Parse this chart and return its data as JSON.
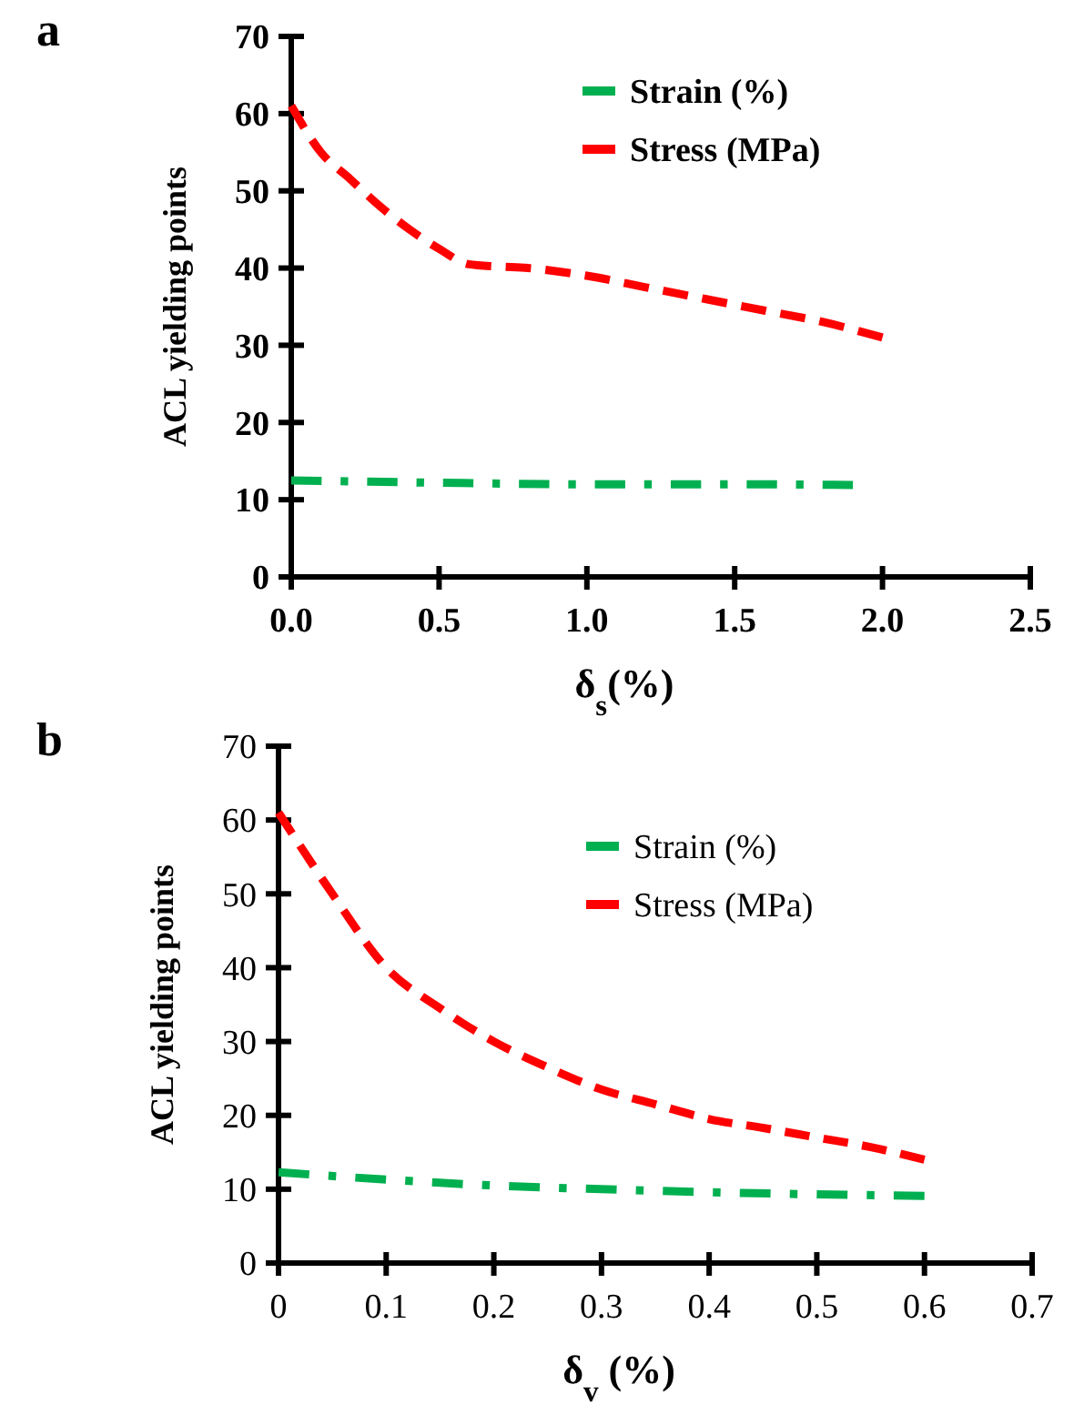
{
  "chart_data": [
    {
      "type": "line",
      "title": "a",
      "xlabel": "δ$_{s}$(%)",
      "ylabel": "ACL yielding  points",
      "xlim": [
        0,
        2.5
      ],
      "ylim": [
        0,
        70
      ],
      "xticks": [
        {
          "value": 0,
          "label": "0.0"
        },
        {
          "value": 0.5,
          "label": "0.5"
        },
        {
          "value": 1,
          "label": "1.0"
        },
        {
          "value": 1.5,
          "label": "1.5"
        },
        {
          "value": 2,
          "label": "2.0"
        },
        {
          "value": 2.5,
          "label": "2.5"
        }
      ],
      "yticks": [
        0,
        10,
        20,
        30,
        40,
        50,
        60,
        70
      ],
      "grid": false,
      "legend": "top right",
      "marker": "none",
      "series": [
        {
          "name": "Strain (%)",
          "color": "#00b050",
          "line_style": "dashdot",
          "x": [
            0,
            0.5,
            1,
            1.5,
            1.9
          ],
          "values": [
            12.5,
            12.2,
            12,
            12,
            11.9
          ]
        },
        {
          "name": "Stress (MPa)",
          "color": "#ff0000",
          "line_style": "dashed",
          "x": [
            0,
            0.1,
            0.2,
            0.3,
            0.4,
            0.5,
            0.6,
            0.7,
            0.8,
            1,
            1.2,
            1.4,
            1.6,
            1.8,
            2
          ],
          "values": [
            61,
            55,
            51.5,
            48,
            45,
            42.5,
            40.5,
            40.2,
            40,
            39,
            37.5,
            36,
            34.5,
            33,
            31
          ]
        }
      ]
    },
    {
      "type": "line",
      "title": "b",
      "xlabel": "δ$_{v}$ (%)",
      "ylabel": "ACL yielding  points",
      "xlim": [
        0,
        0.7
      ],
      "ylim": [
        0,
        70
      ],
      "xticks": [
        0,
        0.1,
        0.2,
        0.3,
        0.4,
        0.5,
        0.6,
        0.7
      ],
      "yticks": [
        0,
        10,
        20,
        30,
        40,
        50,
        60,
        70
      ],
      "grid": false,
      "legend": "top right",
      "marker": "none",
      "series": [
        {
          "name": "Strain (%)",
          "color": "#00b050",
          "line_style": "dashdot",
          "x": [
            0,
            0.1,
            0.2,
            0.3,
            0.4,
            0.5,
            0.6
          ],
          "values": [
            12.3,
            11.3,
            10.5,
            10,
            9.6,
            9.3,
            9.1
          ]
        },
        {
          "name": "Stress (MPa)",
          "color": "#ff0000",
          "line_style": "dashed",
          "x": [
            0,
            0.05,
            0.1,
            0.15,
            0.2,
            0.25,
            0.3,
            0.35,
            0.4,
            0.45,
            0.5,
            0.55,
            0.6
          ],
          "values": [
            61,
            50,
            40,
            34.5,
            30,
            26.5,
            23.5,
            21.5,
            19.5,
            18.3,
            17,
            15.7,
            14
          ]
        }
      ]
    }
  ]
}
